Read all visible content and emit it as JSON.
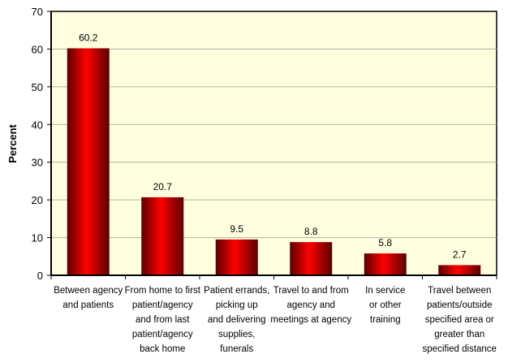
{
  "chart_data": {
    "type": "bar",
    "title": "",
    "xlabel": "",
    "ylabel": "Percent",
    "ylim": [
      0,
      70
    ],
    "yticks": [
      0,
      10,
      20,
      30,
      40,
      50,
      60,
      70
    ],
    "grid": true,
    "categories": [
      [
        "Between agency",
        "and patients"
      ],
      [
        "From home to first",
        "patient/agency",
        "and from last",
        "patient/agency",
        "back home"
      ],
      [
        "Patient errands,",
        "picking up",
        "and delivering",
        "supplies,",
        "funerals"
      ],
      [
        "Travel to and from",
        "agency and",
        "meetings at agency"
      ],
      [
        "In service",
        "or other",
        "training"
      ],
      [
        "Travel between",
        "patients/outside",
        "specified area or",
        "greater than",
        "specified distance"
      ]
    ],
    "values": [
      60.2,
      20.7,
      9.5,
      8.8,
      5.8,
      2.7
    ],
    "data_labels": [
      "60.2",
      "20.7",
      "9.5",
      "8.8",
      "5.8",
      "2.7"
    ],
    "colors": {
      "bar": "#ff0000",
      "bar_dark": "#5a0000",
      "plot_background": "#ffffe0",
      "gridline": "#b0b0a0"
    }
  }
}
